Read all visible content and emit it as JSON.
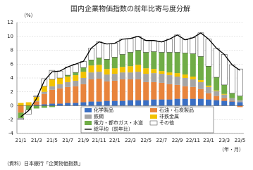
{
  "chart_data": {
    "type": "stacked_bar_line",
    "title": "国内企業物価指数の前年比寄与度分解",
    "y_label": "（%）",
    "x_label": "（年・月）",
    "note": "（資料）日本銀行「企業物価指数」",
    "categories": [
      "21/1",
      null,
      "21/3",
      null,
      "21/5",
      null,
      "21/7",
      null,
      "21/9",
      null,
      "21/11",
      null,
      "22/1",
      null,
      "22/3",
      null,
      "22/5",
      null,
      "22/7",
      null,
      "22/9",
      null,
      "22/11",
      null,
      "23/1",
      null,
      "23/3",
      null,
      "23/5"
    ],
    "ylim": [
      -4,
      12
    ],
    "yticks": [
      -4,
      -2,
      0,
      2,
      4,
      6,
      8,
      10,
      12
    ],
    "grid": true,
    "series": [
      {
        "name": "化学製品",
        "color": "#3a6fc4",
        "values": [
          0,
          0,
          0.1,
          0.2,
          0.3,
          0.3,
          0.4,
          0.4,
          0.5,
          0.6,
          0.6,
          0.7,
          0.7,
          0.7,
          0.8,
          0.8,
          0.8,
          0.9,
          0.9,
          0.9,
          1.0,
          1.0,
          1.0,
          1.0,
          0.9,
          0.8,
          0.7,
          0.6,
          0.5
        ]
      },
      {
        "name": "石油・石炭製品",
        "color": "#e8843c",
        "values": [
          -1.0,
          0,
          0.5,
          1.5,
          2.0,
          2.2,
          2.3,
          2.4,
          2.6,
          3.2,
          3.3,
          2.8,
          2.9,
          3.1,
          3.0,
          3.0,
          2.6,
          2.5,
          2.4,
          2.2,
          2.0,
          1.8,
          1.7,
          1.4,
          0.9,
          0.6,
          0.4,
          0.1,
          -0.2
        ]
      },
      {
        "name": "鉄鋼",
        "color": "#a5a5a5",
        "values": [
          0,
          0,
          0.1,
          0.3,
          0.5,
          0.6,
          0.7,
          0.8,
          0.9,
          1.0,
          1.0,
          1.0,
          1.0,
          1.0,
          1.0,
          1.1,
          1.2,
          1.3,
          1.3,
          1.3,
          1.2,
          1.2,
          1.1,
          1.0,
          0.9,
          0.7,
          0.5,
          0.4,
          0.3
        ]
      },
      {
        "name": "非鉄金属",
        "color": "#f2c200",
        "values": [
          0.4,
          0.5,
          0.6,
          0.8,
          1.0,
          0.9,
          0.8,
          0.8,
          0.9,
          1.0,
          1.0,
          0.8,
          0.8,
          0.8,
          0.9,
          1.0,
          0.8,
          0.6,
          0.4,
          0.4,
          0.5,
          0.5,
          0.4,
          0.3,
          0.2,
          0.1,
          0.1,
          0.0,
          0.0
        ]
      },
      {
        "name": "電力・都市ガス・水道",
        "color": "#70ad47",
        "values": [
          -0.8,
          -0.6,
          -0.4,
          -0.3,
          -0.2,
          0,
          0.2,
          0.4,
          0.6,
          0.8,
          1.0,
          1.4,
          1.6,
          1.8,
          2.0,
          2.1,
          2.3,
          2.5,
          2.7,
          2.9,
          3.0,
          3.1,
          3.3,
          3.4,
          2.8,
          1.9,
          1.3,
          0.7,
          0.6
        ]
      },
      {
        "name": "その他",
        "color": "#ffffff",
        "values": [
          -0.2,
          -0.6,
          0.1,
          1.1,
          1.3,
          1.0,
          1.2,
          1.2,
          0.9,
          1.7,
          2.3,
          2.2,
          2.0,
          2.2,
          2.0,
          2.0,
          1.7,
          1.6,
          1.5,
          1.9,
          2.5,
          1.9,
          2.3,
          3.4,
          3.9,
          4.2,
          4.4,
          4.1,
          3.9
        ]
      },
      {
        "name": "総平均（前年比）",
        "type": "line",
        "color": "#000000",
        "values": [
          -1.6,
          -0.7,
          1.0,
          3.6,
          4.9,
          5.0,
          5.6,
          6.0,
          6.4,
          8.3,
          9.2,
          8.9,
          9.0,
          9.6,
          9.7,
          10.0,
          9.4,
          9.4,
          9.2,
          9.6,
          10.2,
          9.5,
          9.8,
          10.5,
          9.6,
          8.3,
          7.4,
          5.9,
          5.1
        ]
      }
    ]
  }
}
